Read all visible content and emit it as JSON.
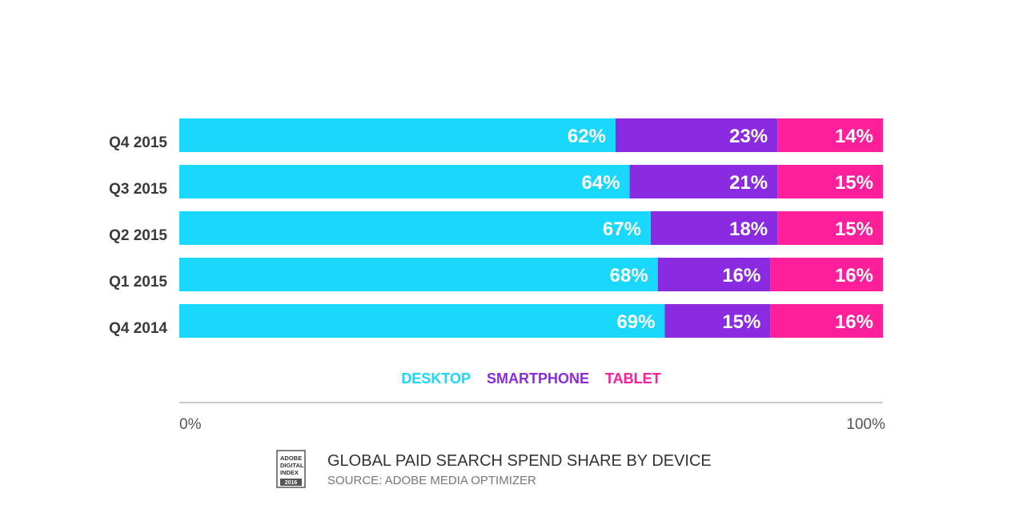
{
  "chart_data": {
    "type": "bar",
    "orientation": "horizontal",
    "stacked": true,
    "categories": [
      "Q4 2015",
      "Q3 2015",
      "Q2 2015",
      "Q1 2015",
      "Q4 2014"
    ],
    "series": [
      {
        "name": "DESKTOP",
        "color": "#1ad8fb",
        "values": [
          62,
          64,
          67,
          68,
          69
        ]
      },
      {
        "name": "SMARTPHONE",
        "color": "#8a2be2",
        "values": [
          23,
          21,
          18,
          16,
          15
        ]
      },
      {
        "name": "TABLET",
        "color": "#ff1f9a",
        "values": [
          14,
          15,
          15,
          16,
          16
        ]
      }
    ],
    "data_label_suffix": "%",
    "xlim": [
      0,
      100
    ],
    "x_tick_labels": [
      "0%",
      "100%"
    ],
    "legend_placement": "bottom-center",
    "grid": false
  },
  "footer": {
    "title": "GLOBAL PAID SEARCH SPEND SHARE BY DEVICE",
    "source": "SOURCE: ADOBE MEDIA OPTIMIZER",
    "badge": {
      "lines": [
        "ADOBE",
        "DIGITAL",
        "INDEX"
      ],
      "year": "2016"
    }
  }
}
